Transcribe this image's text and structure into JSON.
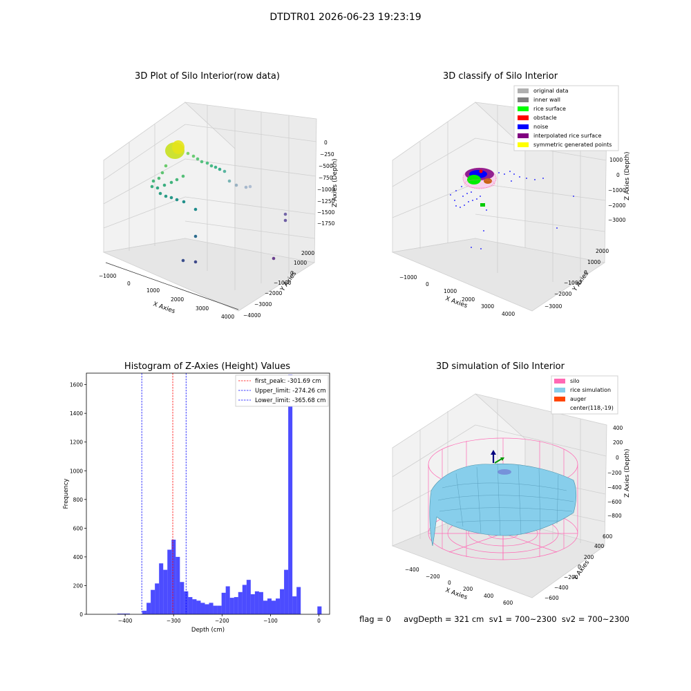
{
  "suptitle": "DTDTR01 2026-06-23 19:23:19",
  "panels": {
    "raw": {
      "title": "3D Plot of Silo Interior(row data)",
      "xlabel": "X Axies",
      "ylabel": "Y Axies",
      "zlabel": "Z Axies (Depth)",
      "x_ticks": [
        "−1000",
        "0",
        "1000",
        "2000",
        "3000",
        "4000"
      ],
      "y_ticks": [
        "2000",
        "1000",
        "0",
        "−1000",
        "−2000",
        "−3000",
        "−4000"
      ],
      "z_ticks": [
        "0",
        "−250",
        "−500",
        "−750",
        "−1000",
        "−1250",
        "−1500",
        "−1750"
      ]
    },
    "classify": {
      "title": "3D classify of Silo Interior",
      "xlabel": "X Axies",
      "ylabel": "Y Axies",
      "zlabel": "Z Axies (Depth)",
      "x_ticks": [
        "−1000",
        "0",
        "1000",
        "2000",
        "3000",
        "4000"
      ],
      "y_ticks": [
        "2000",
        "1000",
        "0",
        "−1000",
        "−2000",
        "−3000"
      ],
      "z_ticks": [
        "1000",
        "0",
        "−1000",
        "−2000",
        "−3000"
      ],
      "legend": [
        {
          "label": "original data",
          "color": "#b0b0b0"
        },
        {
          "label": "inner wall",
          "color": "#808080"
        },
        {
          "label": "rice surface",
          "color": "#00ff00"
        },
        {
          "label": "obstacle",
          "color": "#ff0000"
        },
        {
          "label": "noise",
          "color": "#0000ff"
        },
        {
          "label": "interpolated rice surface",
          "color": "#800080"
        },
        {
          "label": "symmetric generated points",
          "color": "#ffff00"
        }
      ]
    },
    "simulation": {
      "title": "3D simulation of Silo Interior",
      "xlabel": "X Axies",
      "ylabel": "Y Axies",
      "zlabel": "Z Axies (Depth)",
      "x_ticks": [
        "−400",
        "−200",
        "0",
        "200",
        "400",
        "600"
      ],
      "y_ticks": [
        "600",
        "400",
        "200",
        "0",
        "−200",
        "−400",
        "−600"
      ],
      "z_ticks": [
        "400",
        "200",
        "0",
        "−200",
        "−400",
        "−600",
        "−800"
      ],
      "legend": [
        {
          "label": "silo",
          "color": "#ff69b4"
        },
        {
          "label": "rice simulation",
          "color": "#87ceeb"
        },
        {
          "label": "auger",
          "color": "#ff4500"
        },
        {
          "label": "center(118,-19)",
          "color": ""
        }
      ]
    }
  },
  "footer": "flag = 0     avgDepth = 321 cm  sv1 = 700~2300  sv2 = 700~2300",
  "chart_data": [
    {
      "type": "bar",
      "title": "Histogram of Z-Axies (Height) Values",
      "xlabel": "Depth (cm)",
      "ylabel": "Frequency",
      "xlim": [
        -480,
        22
      ],
      "ylim": [
        0,
        1680
      ],
      "x_ticks": [
        "−400",
        "−300",
        "−200",
        "−100",
        "0"
      ],
      "y_ticks": [
        "0",
        "200",
        "400",
        "600",
        "800",
        "1000",
        "1200",
        "1400",
        "1600"
      ],
      "bin_width": 8.6,
      "bin_starts": [
        -416,
        -407.4,
        -398.8,
        -390.2,
        -381.6,
        -373,
        -364.4,
        -355.8,
        -347.2,
        -338.6,
        -330,
        -321.4,
        -312.8,
        -304.2,
        -295.6,
        -287,
        -278.4,
        -269.8,
        -261.2,
        -252.6,
        -244,
        -235.4,
        -226.8,
        -218.2,
        -209.6,
        -201,
        -192.4,
        -183.8,
        -175.2,
        -166.6,
        -158,
        -149.4,
        -140.8,
        -132.2,
        -123.6,
        -115,
        -106.4,
        -97.8,
        -89.2,
        -80.6,
        -72,
        -63.4,
        -54.8,
        -46.2,
        -37.6,
        -29,
        -20.4,
        -11.8,
        -3.2
      ],
      "values": [
        5,
        5,
        5,
        0,
        0,
        0,
        25,
        80,
        170,
        215,
        355,
        310,
        450,
        520,
        400,
        225,
        160,
        120,
        105,
        95,
        80,
        70,
        80,
        60,
        60,
        150,
        195,
        115,
        120,
        155,
        205,
        240,
        140,
        160,
        155,
        95,
        110,
        95,
        110,
        175,
        310,
        1670,
        125,
        190,
        0,
        0,
        0,
        0,
        55
      ],
      "bar_color": "#0000ff",
      "bar_alpha": 0.7,
      "grid": false,
      "legend_position": "top-right",
      "lines": [
        {
          "label": "first_peak: -301.69 cm",
          "x": -301.69,
          "color": "#ff0000"
        },
        {
          "label": "Upper_limit: -274.26 cm",
          "x": -274.26,
          "color": "#0000ff"
        },
        {
          "label": "Lower_limit: -365.68 cm",
          "x": -365.68,
          "color": "#0000ff"
        }
      ]
    }
  ]
}
